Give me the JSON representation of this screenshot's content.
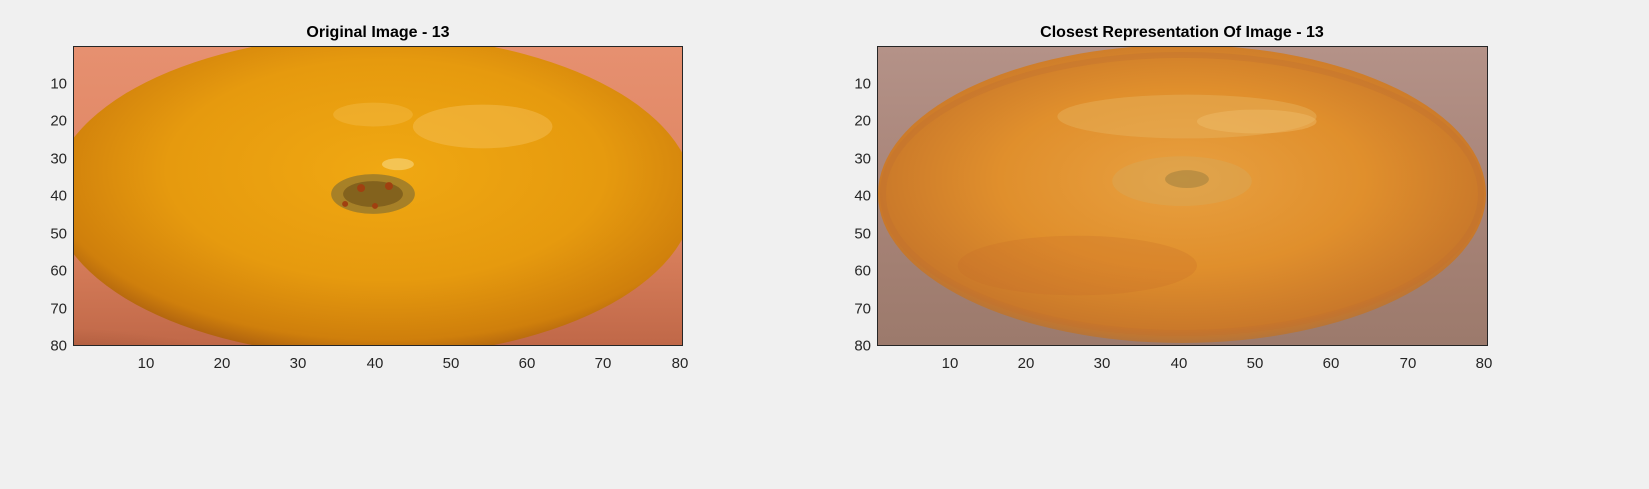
{
  "panels": [
    {
      "title": "Original Image - 13",
      "image_label": "orange fruit (original)",
      "y_ticks": [
        "10",
        "20",
        "30",
        "40",
        "50",
        "60",
        "70",
        "80"
      ],
      "x_ticks": [
        "10",
        "20",
        "30",
        "40",
        "50",
        "60",
        "70",
        "80"
      ],
      "colors": {
        "background": "#e08a66",
        "fruit_main": "#e99b10",
        "fruit_highlight": "#f2b43a",
        "fruit_shadow": "#b0600c",
        "stem_area": "#8c6a2a"
      }
    },
    {
      "title": "Closest Representation Of Image - 13",
      "image_label": "orange fruit (reconstruction)",
      "y_ticks": [
        "10",
        "20",
        "30",
        "40",
        "50",
        "60",
        "70",
        "80"
      ],
      "x_ticks": [
        "10",
        "20",
        "30",
        "40",
        "50",
        "60",
        "70",
        "80"
      ],
      "colors": {
        "background": "#a8867a",
        "fruit_main": "#e0902a",
        "fruit_highlight": "#e8b45e",
        "fruit_shadow": "#a86a2c",
        "stem_area": "#b09050"
      }
    }
  ]
}
